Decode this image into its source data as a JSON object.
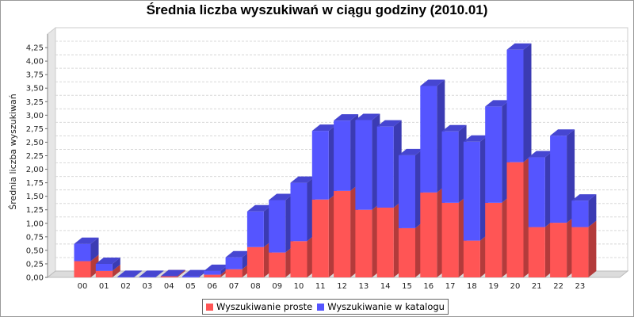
{
  "chart_data": {
    "type": "bar",
    "stacked": true,
    "three_d": true,
    "title": "Średnia liczba wyszukiwań w ciągu godziny (2010.01)",
    "xlabel": "",
    "ylabel": "Średnia liczba wyszukiwań",
    "ylim": [
      0,
      4.5
    ],
    "yticks": [
      "0,00",
      "0,25",
      "0,50",
      "0,75",
      "1,00",
      "1,25",
      "1,50",
      "1,75",
      "2,00",
      "2,25",
      "2,50",
      "2,75",
      "3,00",
      "3,25",
      "3,50",
      "3,75",
      "4,00",
      "4,25"
    ],
    "categories": [
      "00",
      "01",
      "02",
      "03",
      "04",
      "05",
      "06",
      "07",
      "08",
      "09",
      "10",
      "11",
      "12",
      "13",
      "14",
      "15",
      "16",
      "17",
      "18",
      "19",
      "20",
      "21",
      "22",
      "23"
    ],
    "series": [
      {
        "name": "Wyszukiwanie proste",
        "color": "#ff5555",
        "values": [
          0.3,
          0.12,
          0.0,
          0.0,
          0.02,
          0.0,
          0.05,
          0.15,
          0.56,
          0.46,
          0.67,
          1.44,
          1.6,
          1.25,
          1.29,
          0.91,
          1.57,
          1.38,
          0.68,
          1.38,
          2.13,
          0.93,
          1.01,
          0.93
        ]
      },
      {
        "name": "Wyszukiwanie w katalogu",
        "color": "#5555ff",
        "values": [
          0.32,
          0.13,
          0.01,
          0.01,
          0.0,
          0.02,
          0.07,
          0.22,
          0.66,
          0.97,
          1.08,
          1.27,
          1.3,
          1.66,
          1.5,
          1.35,
          1.97,
          1.32,
          1.83,
          1.78,
          2.08,
          1.29,
          1.61,
          0.49
        ]
      }
    ],
    "grid": true,
    "legend_position": "bottom"
  }
}
